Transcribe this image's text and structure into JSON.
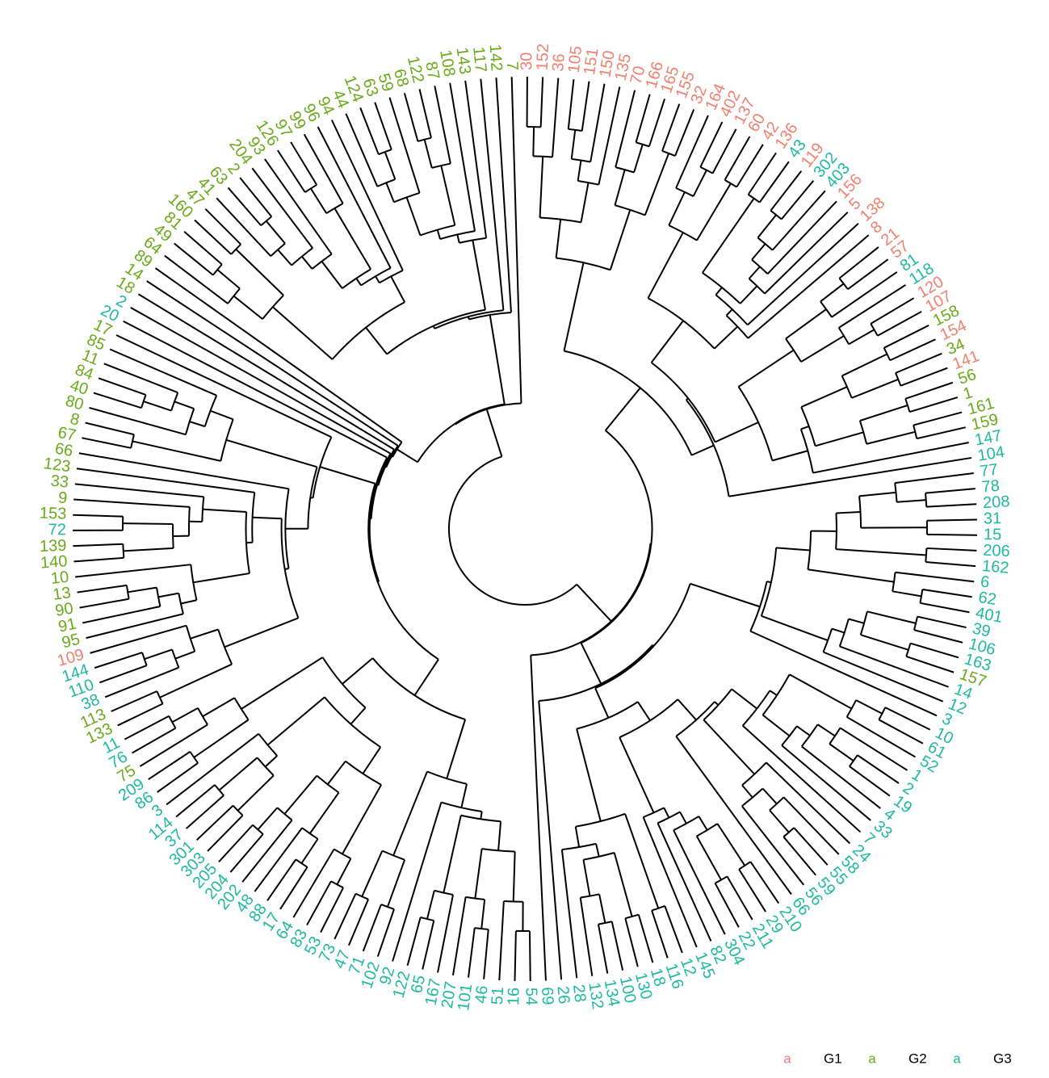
{
  "tree": {
    "groups": [
      {
        "label": "G1",
        "color": "#f08070"
      },
      {
        "label": "G2",
        "color": "#6aaa1a"
      },
      {
        "label": "G3",
        "color": "#1fb9a0"
      }
    ],
    "legend_symbol": "a",
    "leaves": [
      {
        "label": "30",
        "group": 0
      },
      {
        "label": "152",
        "group": 0
      },
      {
        "label": "36",
        "group": 0
      },
      {
        "label": "105",
        "group": 0
      },
      {
        "label": "151",
        "group": 0
      },
      {
        "label": "150",
        "group": 0
      },
      {
        "label": "135",
        "group": 0
      },
      {
        "label": "70",
        "group": 0
      },
      {
        "label": "166",
        "group": 0
      },
      {
        "label": "165",
        "group": 0
      },
      {
        "label": "155",
        "group": 0
      },
      {
        "label": "32",
        "group": 0
      },
      {
        "label": "164",
        "group": 0
      },
      {
        "label": "402",
        "group": 0
      },
      {
        "label": "137",
        "group": 0
      },
      {
        "label": "60",
        "group": 0
      },
      {
        "label": "42",
        "group": 0
      },
      {
        "label": "136",
        "group": 0
      },
      {
        "label": "43",
        "group": 2
      },
      {
        "label": "119",
        "group": 0
      },
      {
        "label": "302",
        "group": 2
      },
      {
        "label": "403",
        "group": 2
      },
      {
        "label": "156",
        "group": 0
      },
      {
        "label": "5",
        "group": 0
      },
      {
        "label": "138",
        "group": 0
      },
      {
        "label": "8",
        "group": 0
      },
      {
        "label": "21",
        "group": 0
      },
      {
        "label": "57",
        "group": 0
      },
      {
        "label": "81",
        "group": 2
      },
      {
        "label": "118",
        "group": 2
      },
      {
        "label": "120",
        "group": 0
      },
      {
        "label": "107",
        "group": 0
      },
      {
        "label": "158",
        "group": 1
      },
      {
        "label": "154",
        "group": 0
      },
      {
        "label": "34",
        "group": 1
      },
      {
        "label": "141",
        "group": 0
      },
      {
        "label": "56",
        "group": 1
      },
      {
        "label": "1",
        "group": 1
      },
      {
        "label": "161",
        "group": 1
      },
      {
        "label": "159",
        "group": 1
      },
      {
        "label": "147",
        "group": 2
      },
      {
        "label": "104",
        "group": 2
      },
      {
        "label": "77",
        "group": 2
      },
      {
        "label": "78",
        "group": 2
      },
      {
        "label": "208",
        "group": 2
      },
      {
        "label": "31",
        "group": 2
      },
      {
        "label": "15",
        "group": 2
      },
      {
        "label": "206",
        "group": 2
      },
      {
        "label": "162",
        "group": 2
      },
      {
        "label": "6",
        "group": 2
      },
      {
        "label": "62",
        "group": 2
      },
      {
        "label": "401",
        "group": 2
      },
      {
        "label": "39",
        "group": 2
      },
      {
        "label": "106",
        "group": 2
      },
      {
        "label": "163",
        "group": 2
      },
      {
        "label": "157",
        "group": 1
      },
      {
        "label": "14",
        "group": 2
      },
      {
        "label": "12",
        "group": 2
      },
      {
        "label": "3",
        "group": 2
      },
      {
        "label": "10",
        "group": 2
      },
      {
        "label": "61",
        "group": 2
      },
      {
        "label": "52",
        "group": 2
      },
      {
        "label": "1",
        "group": 2
      },
      {
        "label": "2",
        "group": 2
      },
      {
        "label": "19",
        "group": 2
      },
      {
        "label": "4",
        "group": 2
      },
      {
        "label": "33",
        "group": 2
      },
      {
        "label": "7",
        "group": 2
      },
      {
        "label": "24",
        "group": 2
      },
      {
        "label": "58",
        "group": 2
      },
      {
        "label": "55",
        "group": 2
      },
      {
        "label": "59",
        "group": 2
      },
      {
        "label": "56",
        "group": 2
      },
      {
        "label": "66",
        "group": 2
      },
      {
        "label": "210",
        "group": 2
      },
      {
        "label": "29",
        "group": 2
      },
      {
        "label": "211",
        "group": 2
      },
      {
        "label": "22",
        "group": 2
      },
      {
        "label": "304",
        "group": 2
      },
      {
        "label": "82",
        "group": 2
      },
      {
        "label": "145",
        "group": 2
      },
      {
        "label": "12",
        "group": 2
      },
      {
        "label": "116",
        "group": 2
      },
      {
        "label": "18",
        "group": 2
      },
      {
        "label": "130",
        "group": 2
      },
      {
        "label": "100",
        "group": 2
      },
      {
        "label": "134",
        "group": 2
      },
      {
        "label": "132",
        "group": 2
      },
      {
        "label": "28",
        "group": 2
      },
      {
        "label": "26",
        "group": 2
      },
      {
        "label": "69",
        "group": 2
      },
      {
        "label": "54",
        "group": 2
      },
      {
        "label": "16",
        "group": 2
      },
      {
        "label": "51",
        "group": 2
      },
      {
        "label": "46",
        "group": 2
      },
      {
        "label": "101",
        "group": 2
      },
      {
        "label": "207",
        "group": 2
      },
      {
        "label": "167",
        "group": 2
      },
      {
        "label": "65",
        "group": 2
      },
      {
        "label": "122",
        "group": 2
      },
      {
        "label": "92",
        "group": 2
      },
      {
        "label": "102",
        "group": 2
      },
      {
        "label": "71",
        "group": 2
      },
      {
        "label": "47",
        "group": 2
      },
      {
        "label": "73",
        "group": 2
      },
      {
        "label": "53",
        "group": 2
      },
      {
        "label": "83",
        "group": 2
      },
      {
        "label": "64",
        "group": 2
      },
      {
        "label": "17",
        "group": 2
      },
      {
        "label": "88",
        "group": 2
      },
      {
        "label": "48",
        "group": 2
      },
      {
        "label": "202",
        "group": 2
      },
      {
        "label": "204",
        "group": 2
      },
      {
        "label": "205",
        "group": 2
      },
      {
        "label": "303",
        "group": 2
      },
      {
        "label": "301",
        "group": 2
      },
      {
        "label": "37",
        "group": 2
      },
      {
        "label": "114",
        "group": 2
      },
      {
        "label": "3",
        "group": 2
      },
      {
        "label": "86",
        "group": 2
      },
      {
        "label": "209",
        "group": 2
      },
      {
        "label": "75",
        "group": 1
      },
      {
        "label": "76",
        "group": 2
      },
      {
        "label": "11",
        "group": 2
      },
      {
        "label": "133",
        "group": 1
      },
      {
        "label": "113",
        "group": 1
      },
      {
        "label": "38",
        "group": 2
      },
      {
        "label": "110",
        "group": 2
      },
      {
        "label": "144",
        "group": 2
      },
      {
        "label": "109",
        "group": 0
      },
      {
        "label": "95",
        "group": 1
      },
      {
        "label": "91",
        "group": 1
      },
      {
        "label": "90",
        "group": 1
      },
      {
        "label": "13",
        "group": 1
      },
      {
        "label": "10",
        "group": 1
      },
      {
        "label": "140",
        "group": 1
      },
      {
        "label": "139",
        "group": 1
      },
      {
        "label": "72",
        "group": 2
      },
      {
        "label": "153",
        "group": 1
      },
      {
        "label": "9",
        "group": 1
      },
      {
        "label": "33",
        "group": 1
      },
      {
        "label": "123",
        "group": 1
      },
      {
        "label": "66",
        "group": 1
      },
      {
        "label": "67",
        "group": 1
      },
      {
        "label": "8",
        "group": 1
      },
      {
        "label": "80",
        "group": 1
      },
      {
        "label": "40",
        "group": 1
      },
      {
        "label": "84",
        "group": 1
      },
      {
        "label": "11",
        "group": 1
      },
      {
        "label": "85",
        "group": 1
      },
      {
        "label": "17",
        "group": 1
      },
      {
        "label": "20",
        "group": 2
      },
      {
        "label": "2",
        "group": 2
      },
      {
        "label": "18",
        "group": 1
      },
      {
        "label": "14",
        "group": 1
      },
      {
        "label": "89",
        "group": 1
      },
      {
        "label": "64",
        "group": 1
      },
      {
        "label": "49",
        "group": 1
      },
      {
        "label": "81",
        "group": 1
      },
      {
        "label": "160",
        "group": 1
      },
      {
        "label": "47",
        "group": 1
      },
      {
        "label": "41",
        "group": 1
      },
      {
        "label": "63",
        "group": 1
      },
      {
        "label": "2",
        "group": 1
      },
      {
        "label": "204",
        "group": 1
      },
      {
        "label": "93",
        "group": 1
      },
      {
        "label": "126",
        "group": 1
      },
      {
        "label": "97",
        "group": 1
      },
      {
        "label": "99",
        "group": 1
      },
      {
        "label": "96",
        "group": 1
      },
      {
        "label": "94",
        "group": 1
      },
      {
        "label": "44",
        "group": 1
      },
      {
        "label": "124",
        "group": 1
      },
      {
        "label": "63",
        "group": 1
      },
      {
        "label": "59",
        "group": 1
      },
      {
        "label": "68",
        "group": 1
      },
      {
        "label": "122",
        "group": 1
      },
      {
        "label": "87",
        "group": 1
      },
      {
        "label": "108",
        "group": 1
      },
      {
        "label": "143",
        "group": 1
      },
      {
        "label": "117",
        "group": 1
      },
      {
        "label": "142",
        "group": 1
      },
      {
        "label": "7",
        "group": 1
      }
    ]
  }
}
